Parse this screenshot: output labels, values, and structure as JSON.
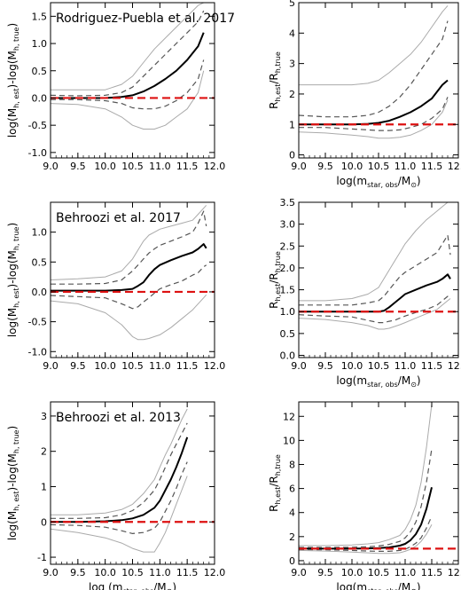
{
  "chart_data": [
    {
      "type": "line",
      "title": "Rodriguez-Puebla et al. 2017",
      "xlabel": "",
      "ylabel": "log(M_h, est)-log(M_h, true)",
      "ylabel_main": "log(M",
      "ylabel_sub1": "h, est",
      "ylabel_mid": ")-log(M",
      "ylabel_sub2": "h, true",
      "ylabel_end": ")",
      "xlim": [
        9.0,
        12.0
      ],
      "ylim": [
        -1.1,
        1.75
      ],
      "xticks": [
        "9.0",
        "9.5",
        "10.0",
        "10.5",
        "11.0",
        "11.5",
        "12.0"
      ],
      "yticks": [
        "-1.0",
        "-0.5",
        "0.0",
        "0.5",
        "1.0",
        "1.5"
      ],
      "ytick_values": [
        -1.0,
        -0.5,
        0.0,
        0.5,
        1.0,
        1.5
      ],
      "reference_line": 0,
      "x": [
        9.0,
        9.5,
        10.0,
        10.3,
        10.5,
        10.7,
        10.9,
        11.1,
        11.3,
        11.5,
        11.7,
        11.8
      ],
      "series": [
        {
          "style": "median",
          "values": [
            0.0,
            0.0,
            0.0,
            0.02,
            0.05,
            0.12,
            0.22,
            0.35,
            0.5,
            0.7,
            0.95,
            1.2
          ]
        },
        {
          "style": "inner-upper",
          "values": [
            0.05,
            0.04,
            0.05,
            0.1,
            0.2,
            0.4,
            0.6,
            0.8,
            1.0,
            1.2,
            1.4,
            1.6
          ]
        },
        {
          "style": "inner-lower",
          "values": [
            -0.03,
            -0.03,
            -0.05,
            -0.1,
            -0.18,
            -0.2,
            -0.2,
            -0.15,
            -0.05,
            0.1,
            0.35,
            0.7
          ]
        },
        {
          "style": "outer-upper",
          "values": [
            0.15,
            0.15,
            0.15,
            0.25,
            0.4,
            0.65,
            0.9,
            1.1,
            1.3,
            1.5,
            1.7,
            1.75
          ]
        },
        {
          "style": "outer-lower",
          "values": [
            -0.1,
            -0.12,
            -0.2,
            -0.35,
            -0.5,
            -0.57,
            -0.57,
            -0.5,
            -0.35,
            -0.2,
            0.1,
            0.5
          ]
        }
      ]
    },
    {
      "type": "line",
      "title": "",
      "xlabel": "log(m_star, obs/M_⊙)",
      "xlabel_main": "log(m",
      "xlabel_sub": "star, obs",
      "xlabel_end": "/M",
      "xlabel_sun": "⊙",
      "xlabel_close": ")",
      "ylabel": "R_h,est/R_h,true",
      "ylabel_main": "R",
      "ylabel_sub1": "h,est",
      "ylabel_mid": "/R",
      "ylabel_sub2": "h,true",
      "ylabel_end": "",
      "xlim": [
        9.0,
        12.0
      ],
      "ylim": [
        -0.1,
        5.0
      ],
      "xticks": [
        "9.0",
        "9.5",
        "10.0",
        "10.5",
        "11.0",
        "11.5",
        "12.0"
      ],
      "yticks": [
        "0",
        "1",
        "2",
        "3",
        "4",
        "5"
      ],
      "ytick_values": [
        0,
        1,
        2,
        3,
        4,
        5
      ],
      "reference_line": 1,
      "x": [
        9.0,
        9.5,
        10.0,
        10.3,
        10.5,
        10.7,
        10.9,
        11.1,
        11.3,
        11.5,
        11.7,
        11.8
      ],
      "series": [
        {
          "style": "median",
          "values": [
            1.0,
            1.0,
            1.0,
            1.02,
            1.05,
            1.12,
            1.25,
            1.4,
            1.6,
            1.85,
            2.3,
            2.45
          ]
        },
        {
          "style": "inner-upper",
          "values": [
            1.3,
            1.25,
            1.25,
            1.3,
            1.4,
            1.6,
            1.9,
            2.3,
            2.8,
            3.3,
            3.8,
            4.4
          ]
        },
        {
          "style": "inner-lower",
          "values": [
            0.9,
            0.9,
            0.85,
            0.82,
            0.8,
            0.8,
            0.82,
            0.9,
            1.0,
            1.2,
            1.5,
            1.9
          ]
        },
        {
          "style": "outer-upper",
          "values": [
            2.3,
            2.3,
            2.3,
            2.35,
            2.45,
            2.7,
            3.0,
            3.3,
            3.7,
            4.2,
            4.7,
            4.9
          ]
        },
        {
          "style": "outer-lower",
          "values": [
            0.75,
            0.72,
            0.65,
            0.6,
            0.55,
            0.55,
            0.58,
            0.65,
            0.8,
            1.0,
            1.4,
            1.8
          ]
        }
      ]
    },
    {
      "type": "line",
      "title": "Behroozi et al. 2017",
      "xlabel": "",
      "ylabel": "log(M_h, est)-log(M_h, true)",
      "ylabel_main": "log(M",
      "ylabel_sub1": "h, est",
      "ylabel_mid": ")-log(M",
      "ylabel_sub2": "h, true",
      "ylabel_end": ")",
      "xlim": [
        9.0,
        12.0
      ],
      "ylim": [
        -1.1,
        1.5
      ],
      "xticks": [
        "9.0",
        "9.5",
        "10.0",
        "10.5",
        "11.0",
        "11.5",
        "12.0"
      ],
      "yticks": [
        "-1.0",
        "-0.5",
        "0.0",
        "0.5",
        "1.0"
      ],
      "ytick_values": [
        -1.0,
        -0.5,
        0.0,
        0.5,
        1.0
      ],
      "reference_line": 0,
      "x": [
        9.0,
        9.5,
        10.0,
        10.3,
        10.5,
        10.6,
        10.7,
        10.8,
        10.9,
        11.0,
        11.2,
        11.4,
        11.6,
        11.7,
        11.8,
        11.85
      ],
      "series": [
        {
          "style": "median",
          "values": [
            0.02,
            0.02,
            0.02,
            0.03,
            0.05,
            0.1,
            0.16,
            0.28,
            0.38,
            0.45,
            0.53,
            0.6,
            0.66,
            0.72,
            0.8,
            0.73
          ]
        },
        {
          "style": "inner-upper",
          "values": [
            0.13,
            0.13,
            0.14,
            0.2,
            0.35,
            0.45,
            0.55,
            0.65,
            0.72,
            0.78,
            0.85,
            0.92,
            1.0,
            1.15,
            1.35,
            1.1
          ]
        },
        {
          "style": "inner-lower",
          "values": [
            -0.06,
            -0.08,
            -0.1,
            -0.2,
            -0.28,
            -0.25,
            -0.17,
            -0.1,
            -0.02,
            0.05,
            0.12,
            0.18,
            0.28,
            0.32,
            0.42,
            0.45
          ]
        },
        {
          "style": "outer-upper",
          "values": [
            0.2,
            0.22,
            0.25,
            0.35,
            0.55,
            0.7,
            0.85,
            0.95,
            1.0,
            1.05,
            1.1,
            1.15,
            1.2,
            1.3,
            1.4,
            1.45
          ]
        },
        {
          "style": "outer-lower",
          "values": [
            -0.15,
            -0.2,
            -0.35,
            -0.55,
            -0.75,
            -0.8,
            -0.8,
            -0.78,
            -0.75,
            -0.72,
            -0.6,
            -0.45,
            -0.3,
            -0.2,
            -0.1,
            -0.05
          ]
        }
      ]
    },
    {
      "type": "line",
      "title": "",
      "xlabel": "log(m_star, obs/M_⊙)",
      "xlabel_main": "log(m",
      "xlabel_sub": "star, obs",
      "xlabel_end": "/M",
      "xlabel_sun": "⊙",
      "xlabel_close": ")",
      "ylabel": "R_h,est/R_h,true",
      "ylabel_main": "R",
      "ylabel_sub1": "h,est",
      "ylabel_mid": "/R",
      "ylabel_sub2": "h,true",
      "ylabel_end": "",
      "xlim": [
        9.0,
        12.0
      ],
      "ylim": [
        -0.05,
        3.5
      ],
      "xticks": [
        "9.0",
        "9.5",
        "10.0",
        "10.5",
        "11.0",
        "11.5",
        "12.0"
      ],
      "yticks": [
        "0.0",
        "0.5",
        "1.0",
        "1.5",
        "2.0",
        "2.5",
        "3.0",
        "3.5"
      ],
      "ytick_values": [
        0.0,
        0.5,
        1.0,
        1.5,
        2.0,
        2.5,
        3.0,
        3.5
      ],
      "reference_line": 1,
      "x": [
        9.0,
        9.5,
        10.0,
        10.3,
        10.5,
        10.6,
        10.7,
        10.8,
        10.9,
        11.0,
        11.2,
        11.4,
        11.6,
        11.7,
        11.8,
        11.85
      ],
      "series": [
        {
          "style": "median",
          "values": [
            1.0,
            1.0,
            1.0,
            1.0,
            1.0,
            1.02,
            1.1,
            1.2,
            1.3,
            1.4,
            1.5,
            1.6,
            1.68,
            1.75,
            1.85,
            1.75
          ]
        },
        {
          "style": "inner-upper",
          "values": [
            1.15,
            1.15,
            1.15,
            1.2,
            1.25,
            1.35,
            1.5,
            1.65,
            1.8,
            1.9,
            2.05,
            2.2,
            2.35,
            2.55,
            2.75,
            2.3
          ]
        },
        {
          "style": "inner-lower",
          "values": [
            0.93,
            0.9,
            0.88,
            0.8,
            0.75,
            0.75,
            0.78,
            0.8,
            0.85,
            0.9,
            0.98,
            1.05,
            1.15,
            1.25,
            1.35,
            1.35
          ]
        },
        {
          "style": "outer-upper",
          "values": [
            1.25,
            1.25,
            1.3,
            1.4,
            1.55,
            1.75,
            1.95,
            2.15,
            2.35,
            2.55,
            2.85,
            3.1,
            3.3,
            3.4,
            3.5,
            3.5
          ]
        },
        {
          "style": "outer-lower",
          "values": [
            0.85,
            0.82,
            0.75,
            0.68,
            0.6,
            0.6,
            0.62,
            0.66,
            0.7,
            0.75,
            0.85,
            0.95,
            1.05,
            1.15,
            1.25,
            1.3
          ]
        }
      ]
    },
    {
      "type": "line",
      "title": "Behroozi et al. 2013",
      "xlabel": "log (m_star, obs/M_⊙)",
      "xlabel_main": "log (m",
      "xlabel_sub": "star, obs",
      "xlabel_end": "/M",
      "xlabel_sun": "⊙",
      "xlabel_close": ")",
      "ylabel": "log(M_h, est)-log(M_h, true)",
      "ylabel_main": "log(M",
      "ylabel_sub1": "h, est",
      "ylabel_mid": ")-log(M",
      "ylabel_sub2": "h, true",
      "ylabel_end": ")",
      "xlim": [
        9.0,
        12.0
      ],
      "ylim": [
        -1.2,
        3.4
      ],
      "xticks": [
        "9.0",
        "9.5",
        "10.0",
        "10.5",
        "11.0",
        "11.5",
        "12.0"
      ],
      "yticks": [
        "-1",
        "0",
        "1",
        "2",
        "3"
      ],
      "ytick_values": [
        -1,
        0,
        1,
        2,
        3
      ],
      "reference_line": 0,
      "x": [
        9.0,
        9.5,
        10.0,
        10.3,
        10.5,
        10.7,
        10.9,
        11.0,
        11.1,
        11.2,
        11.3,
        11.4,
        11.5
      ],
      "series": [
        {
          "style": "median",
          "values": [
            0.0,
            0.0,
            0.02,
            0.05,
            0.1,
            0.2,
            0.4,
            0.6,
            0.9,
            1.2,
            1.55,
            1.95,
            2.4
          ]
        },
        {
          "style": "inner-upper",
          "values": [
            0.1,
            0.1,
            0.12,
            0.2,
            0.32,
            0.55,
            0.9,
            1.2,
            1.55,
            1.9,
            2.2,
            2.5,
            2.8
          ]
        },
        {
          "style": "inner-lower",
          "values": [
            -0.08,
            -0.1,
            -0.15,
            -0.25,
            -0.33,
            -0.3,
            -0.18,
            0.0,
            0.3,
            0.6,
            0.95,
            1.35,
            1.7
          ]
        },
        {
          "style": "outer-upper",
          "values": [
            0.2,
            0.2,
            0.25,
            0.35,
            0.5,
            0.8,
            1.2,
            1.55,
            1.9,
            2.2,
            2.55,
            2.9,
            3.2
          ]
        },
        {
          "style": "outer-lower",
          "values": [
            -0.2,
            -0.3,
            -0.45,
            -0.6,
            -0.75,
            -0.85,
            -0.85,
            -0.6,
            -0.3,
            0.1,
            0.5,
            0.9,
            1.3
          ]
        }
      ]
    },
    {
      "type": "line",
      "title": "",
      "xlabel": "log(m_star, obs/M_⊙)",
      "xlabel_main": "log(m",
      "xlabel_sub": "star, obs",
      "xlabel_end": "/M",
      "xlabel_sun": "⊙",
      "xlabel_close": ")",
      "ylabel": "R_h,est/R_h,true",
      "ylabel_main": "R",
      "ylabel_sub1": "h,est",
      "ylabel_mid": "/R",
      "ylabel_sub2": "h,true",
      "ylabel_end": "",
      "xlim": [
        9.0,
        12.0
      ],
      "ylim": [
        -0.3,
        13.2
      ],
      "xticks": [
        "9.0",
        "9.5",
        "10.0",
        "10.5",
        "11.0",
        "11.5",
        "12.0"
      ],
      "yticks": [
        "0",
        "2",
        "4",
        "6",
        "8",
        "10",
        "12"
      ],
      "ytick_values": [
        0,
        2,
        4,
        6,
        8,
        10,
        12
      ],
      "reference_line": 1,
      "x": [
        9.0,
        9.5,
        10.0,
        10.3,
        10.5,
        10.7,
        10.9,
        11.0,
        11.1,
        11.2,
        11.3,
        11.4,
        11.5
      ],
      "series": [
        {
          "style": "median",
          "values": [
            1.0,
            1.0,
            1.0,
            1.02,
            1.05,
            1.1,
            1.25,
            1.4,
            1.7,
            2.2,
            3.0,
            4.3,
            6.1
          ]
        },
        {
          "style": "inner-upper",
          "values": [
            1.1,
            1.1,
            1.12,
            1.15,
            1.22,
            1.35,
            1.6,
            1.9,
            2.4,
            3.2,
            4.5,
            6.5,
            9.3
          ]
        },
        {
          "style": "inner-lower",
          "values": [
            0.92,
            0.9,
            0.85,
            0.8,
            0.78,
            0.78,
            0.85,
            0.95,
            1.15,
            1.45,
            1.9,
            2.7,
            3.7
          ]
        },
        {
          "style": "outer-upper",
          "values": [
            1.25,
            1.25,
            1.3,
            1.4,
            1.5,
            1.75,
            2.1,
            2.6,
            3.4,
            4.6,
            6.5,
            9.4,
            13.0
          ]
        },
        {
          "style": "outer-lower",
          "values": [
            0.85,
            0.8,
            0.72,
            0.65,
            0.6,
            0.6,
            0.66,
            0.78,
            0.95,
            1.2,
            1.6,
            2.2,
            3.0
          ]
        }
      ]
    }
  ]
}
